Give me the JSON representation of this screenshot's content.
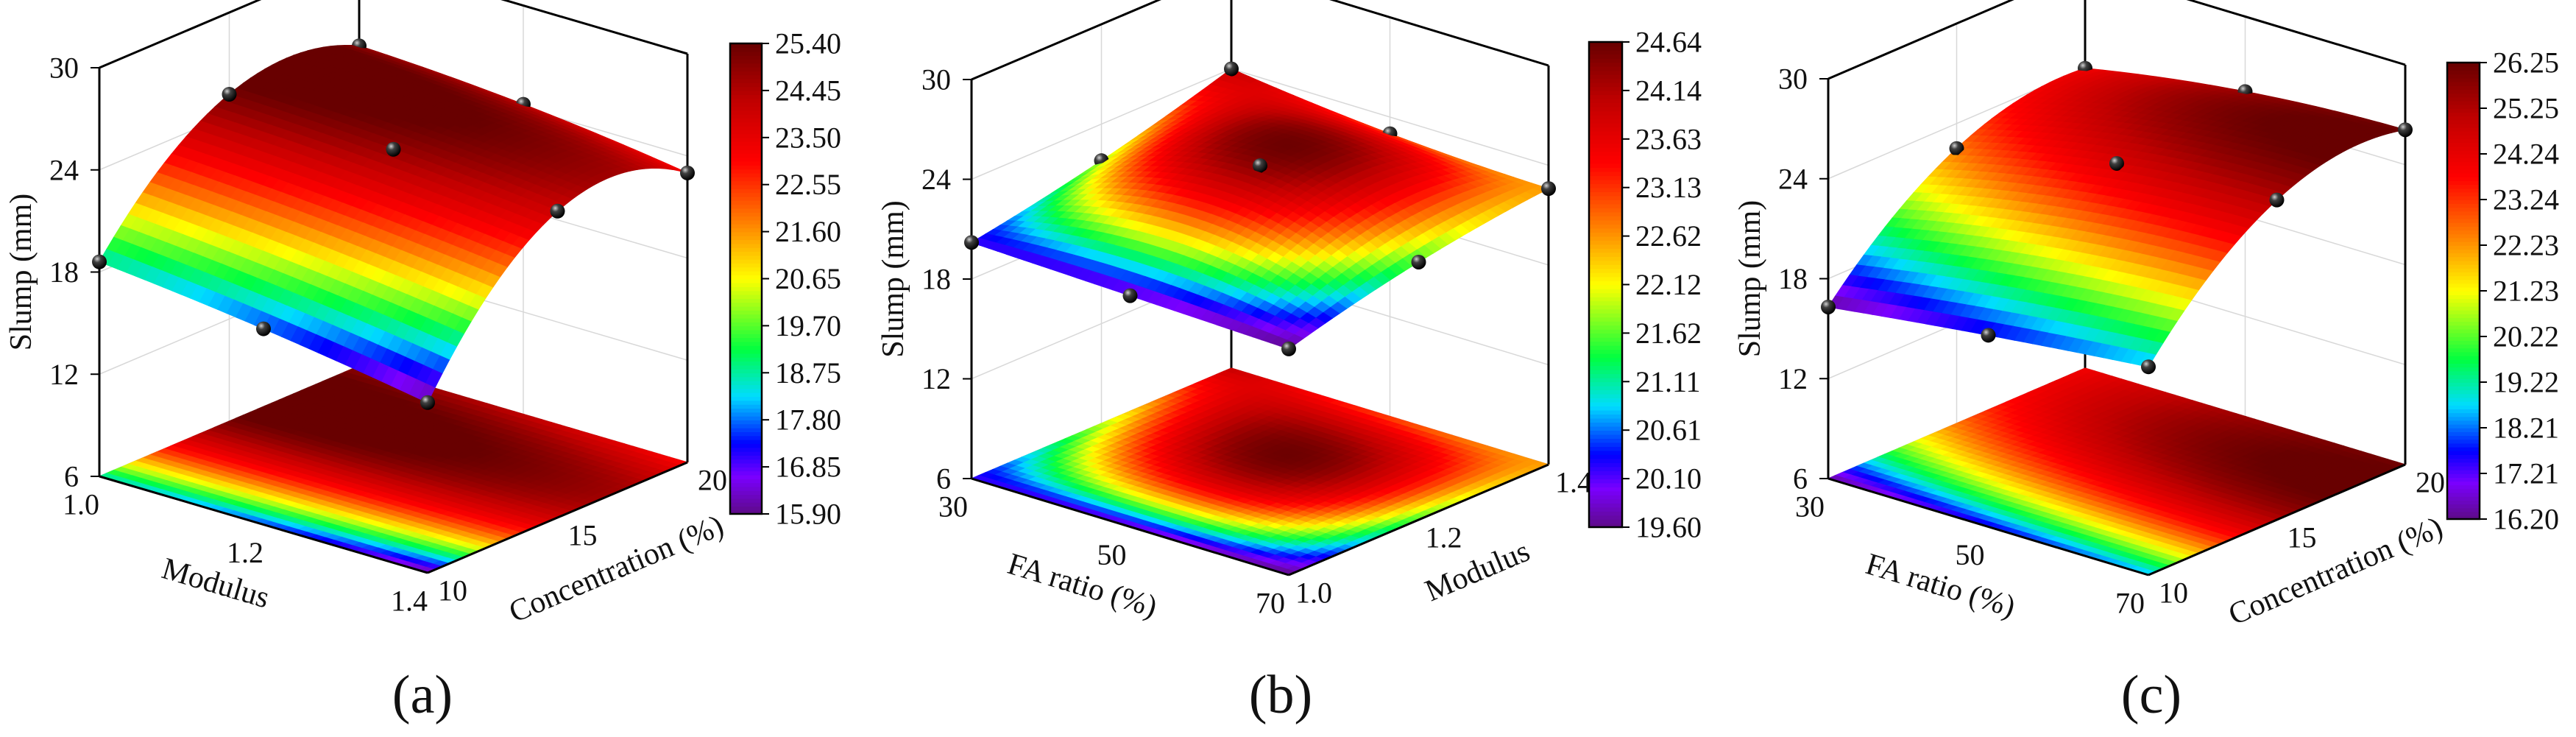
{
  "chart_data": [
    {
      "type": "surface3d",
      "panel_label": "(a)",
      "zlabel": "Slump (mm)",
      "zlim": [
        6,
        30
      ],
      "zticks": [
        "6",
        "12",
        "18",
        "24",
        "30"
      ],
      "x": {
        "label": "Modulus",
        "values": [
          1.0,
          1.2,
          1.4
        ],
        "ticks": [
          "1.0",
          "1.2",
          "1.4"
        ]
      },
      "y": {
        "label": "Concentration (%)",
        "values": [
          10,
          15,
          20
        ],
        "ticks": [
          "10",
          "15",
          "20"
        ]
      },
      "z_grid": [
        [
          18.6,
          25.2,
          24.8
        ],
        [
          17.5,
          24.8,
          24.2
        ],
        [
          16.0,
          24.0,
          23.0
        ]
      ],
      "colorbar": {
        "range": [
          15.9,
          25.4
        ],
        "ticks": [
          "15.90",
          "16.85",
          "17.80",
          "18.75",
          "19.70",
          "20.65",
          "21.60",
          "22.55",
          "23.50",
          "24.45",
          "25.40"
        ]
      }
    },
    {
      "type": "surface3d",
      "panel_label": "(b)",
      "zlabel": "Slump (mm)",
      "zlim": [
        6,
        30
      ],
      "zticks": [
        "6",
        "12",
        "18",
        "24",
        "30"
      ],
      "x": {
        "label": "FA ratio (%)",
        "values": [
          30,
          50,
          70
        ],
        "ticks": [
          "30",
          "50",
          "70"
        ]
      },
      "y": {
        "label": "Modulus",
        "values": [
          1.0,
          1.2,
          1.4
        ],
        "ticks": [
          "1.0",
          "1.2",
          "1.4"
        ]
      },
      "z_grid": [
        [
          20.2,
          21.8,
          24.0
        ],
        [
          19.9,
          24.4,
          23.0
        ],
        [
          19.6,
          21.5,
          22.6
        ]
      ],
      "colorbar": {
        "range": [
          19.6,
          24.64
        ],
        "ticks": [
          "19.60",
          "20.10",
          "20.61",
          "21.11",
          "21.62",
          "22.12",
          "22.62",
          "23.13",
          "23.63",
          "24.14",
          "24.64"
        ]
      }
    },
    {
      "type": "surface3d",
      "panel_label": "(c)",
      "zlabel": "Slump (mm)",
      "zlim": [
        6,
        30
      ],
      "zticks": [
        "6",
        "12",
        "18",
        "24",
        "30"
      ],
      "x": {
        "label": "FA ratio (%)",
        "values": [
          30,
          50,
          70
        ],
        "ticks": [
          "30",
          "50",
          "70"
        ]
      },
      "y": {
        "label": "Concentration (%)",
        "values": [
          10,
          15,
          20
        ],
        "ticks": [
          "10",
          "15",
          "20"
        ]
      },
      "z_grid": [
        [
          16.3,
          22.5,
          24.0
        ],
        [
          17.5,
          24.5,
          25.5
        ],
        [
          18.5,
          25.2,
          26.1
        ]
      ],
      "colorbar": {
        "range": [
          16.2,
          26.25
        ],
        "ticks": [
          "16.20",
          "17.21",
          "18.21",
          "19.22",
          "20.22",
          "21.23",
          "22.23",
          "23.24",
          "24.24",
          "25.25",
          "26.25"
        ]
      }
    }
  ],
  "colormap": [
    "#5e0b86",
    "#7a00ff",
    "#0000ff",
    "#00ddff",
    "#00ff40",
    "#ffff00",
    "#ff8000",
    "#ff0000",
    "#c00000",
    "#680000"
  ]
}
